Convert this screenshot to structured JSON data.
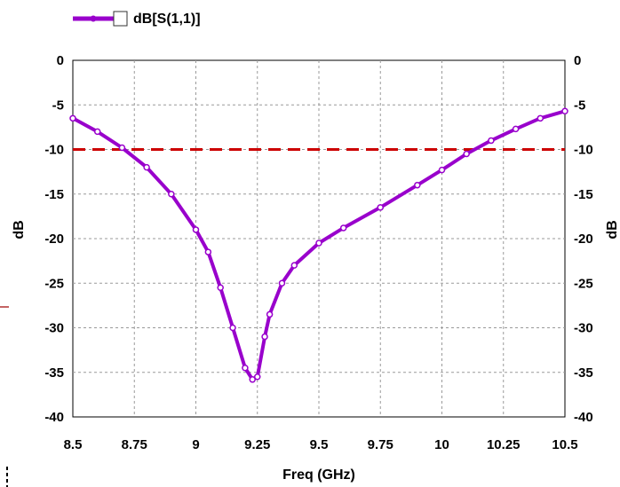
{
  "chart_data": {
    "type": "line",
    "title": "",
    "xlabel": "Freq (GHz)",
    "ylabel": "dB",
    "y2label": "dB",
    "xlim": [
      8.5,
      10.5
    ],
    "ylim": [
      -40,
      0
    ],
    "x_ticks": [
      "8.5",
      "8.75",
      "9",
      "9.25",
      "9.5",
      "9.75",
      "10",
      "10.25",
      "10.5"
    ],
    "y_ticks": [
      "0",
      "-5",
      "-10",
      "-15",
      "-20",
      "-25",
      "-30",
      "-35",
      "-40"
    ],
    "grid": true,
    "legend_position": "top-left",
    "reference_line": {
      "y": -10,
      "color": "#cc0000",
      "style": "dashed"
    },
    "series": [
      {
        "name": "dB[S(1,1)]",
        "color": "#9900cc",
        "x": [
          8.5,
          8.6,
          8.7,
          8.8,
          8.9,
          9.0,
          9.05,
          9.1,
          9.15,
          9.2,
          9.23,
          9.25,
          9.28,
          9.3,
          9.35,
          9.4,
          9.5,
          9.6,
          9.75,
          9.9,
          10.0,
          10.1,
          10.2,
          10.3,
          10.4,
          10.5
        ],
        "values": [
          -6.5,
          -8.0,
          -9.8,
          -12.0,
          -15.0,
          -19.0,
          -21.5,
          -25.5,
          -30.0,
          -34.5,
          -35.8,
          -35.5,
          -31.0,
          -28.5,
          -25.0,
          -23.0,
          -20.5,
          -18.8,
          -16.5,
          -14.0,
          -12.3,
          -10.5,
          -9.0,
          -7.7,
          -6.5,
          -5.7
        ]
      }
    ]
  }
}
